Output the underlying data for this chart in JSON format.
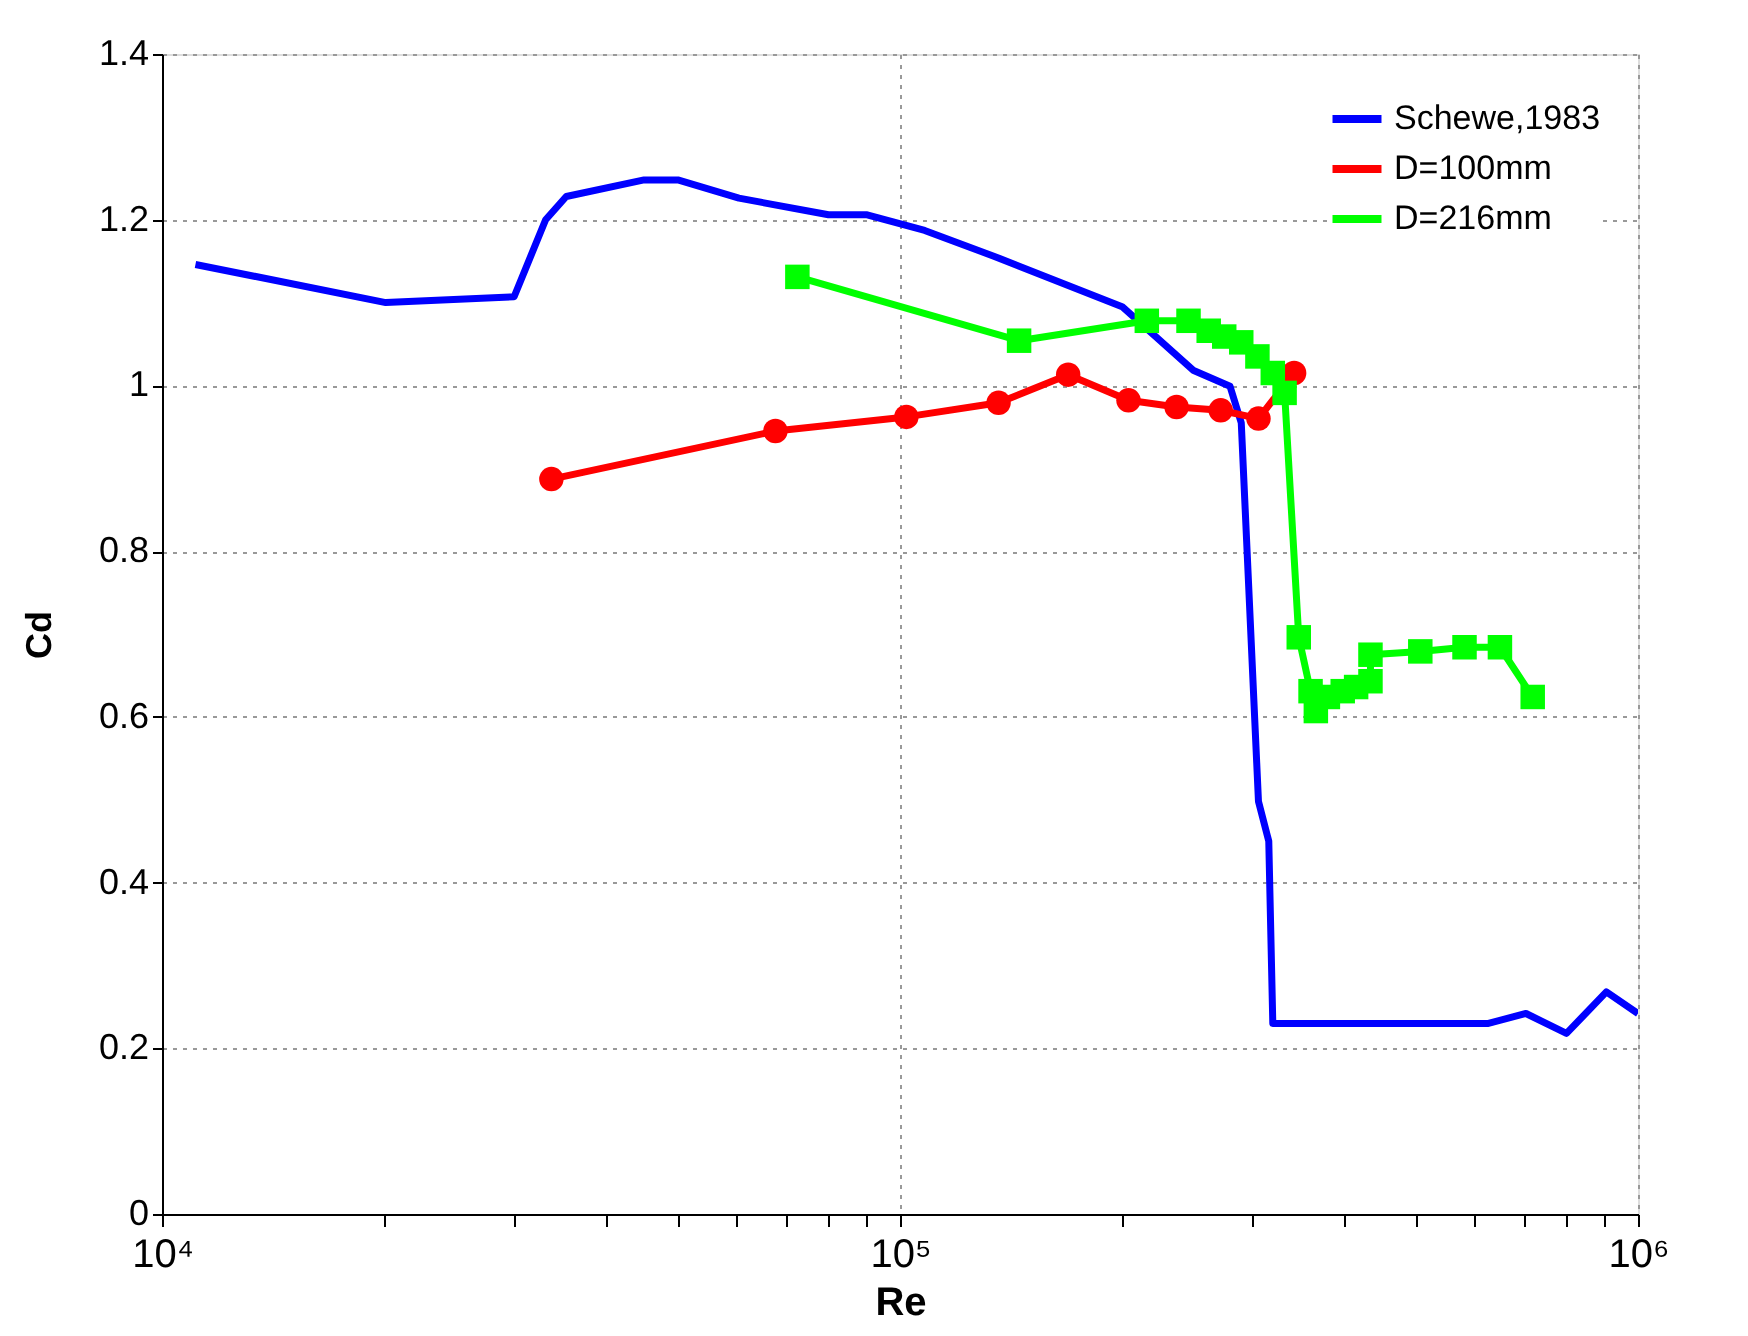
{
  "chart_data": {
    "type": "line",
    "xlabel": "Re",
    "ylabel": "Cd",
    "log": "x",
    "grid": true,
    "legend": "top right",
    "xlim": [
      10000,
      1000000
    ],
    "xticks": [
      {
        "value": 10000,
        "label": "10⁴"
      },
      {
        "value": 20000,
        "label": null
      },
      {
        "value": 30000,
        "label": null
      },
      {
        "value": 40000,
        "label": null
      },
      {
        "value": 50000,
        "label": null
      },
      {
        "value": 60000,
        "label": null
      },
      {
        "value": 70000,
        "label": null
      },
      {
        "value": 80000,
        "label": null
      },
      {
        "value": 90000,
        "label": null
      },
      {
        "value": 100000,
        "label": "10⁵"
      },
      {
        "value": 200000,
        "label": null
      },
      {
        "value": 300000,
        "label": null
      },
      {
        "value": 400000,
        "label": null
      },
      {
        "value": 500000,
        "label": null
      },
      {
        "value": 600000,
        "label": null
      },
      {
        "value": 700000,
        "label": null
      },
      {
        "value": 800000,
        "label": null
      },
      {
        "value": 900000,
        "label": null
      },
      {
        "value": 1000000,
        "label": "10⁶"
      }
    ],
    "ylim": [
      0,
      1.4
    ],
    "yticks": [
      0,
      0.2,
      0.4,
      0.6,
      0.8,
      1,
      1.2,
      1.4
    ],
    "series": [
      {
        "name": "Schewe,1983",
        "color": "#0000ff",
        "marker": "none",
        "x": [
          11100,
          20100,
          30000,
          33100,
          35300,
          45000,
          50000,
          60500,
          80000,
          90000,
          108000,
          134000,
          200000,
          250000,
          280000,
          290000,
          306000,
          316000,
          320000,
          627000,
          705000,
          800000,
          906000,
          1000000
        ],
        "values": [
          1.146,
          1.1,
          1.107,
          1.2,
          1.228,
          1.248,
          1.248,
          1.226,
          1.206,
          1.206,
          1.187,
          1.156,
          1.095,
          1.018,
          0.999,
          0.955,
          0.498,
          0.45,
          0.23,
          0.23,
          0.242,
          0.218,
          0.268,
          0.242
        ]
      },
      {
        "name": "D=100mm",
        "color": "#ff0000",
        "marker": "circle",
        "x": [
          33700,
          67800,
          102000,
          136000,
          169000,
          204000,
          237000,
          272000,
          306000,
          342000
        ],
        "values": [
          0.887,
          0.945,
          0.962,
          0.979,
          1.013,
          0.982,
          0.974,
          0.97,
          0.96,
          1.015
        ]
      },
      {
        "name": "D=216mm",
        "color": "#00ff00",
        "marker": "square",
        "x": [
          72600,
          145000,
          216000,
          246000,
          262000,
          275000,
          290000,
          305000,
          320000,
          332000,
          347000,
          360000,
          366000,
          380000,
          398000,
          415000,
          434000,
          434000,
          507000,
          582000,
          650000,
          720000
        ],
        "values": [
          1.131,
          1.054,
          1.078,
          1.078,
          1.066,
          1.059,
          1.052,
          1.035,
          1.015,
          0.991,
          0.696,
          0.631,
          0.607,
          0.624,
          0.631,
          0.636,
          0.643,
          0.675,
          0.679,
          0.684,
          0.684,
          0.624
        ]
      }
    ]
  }
}
